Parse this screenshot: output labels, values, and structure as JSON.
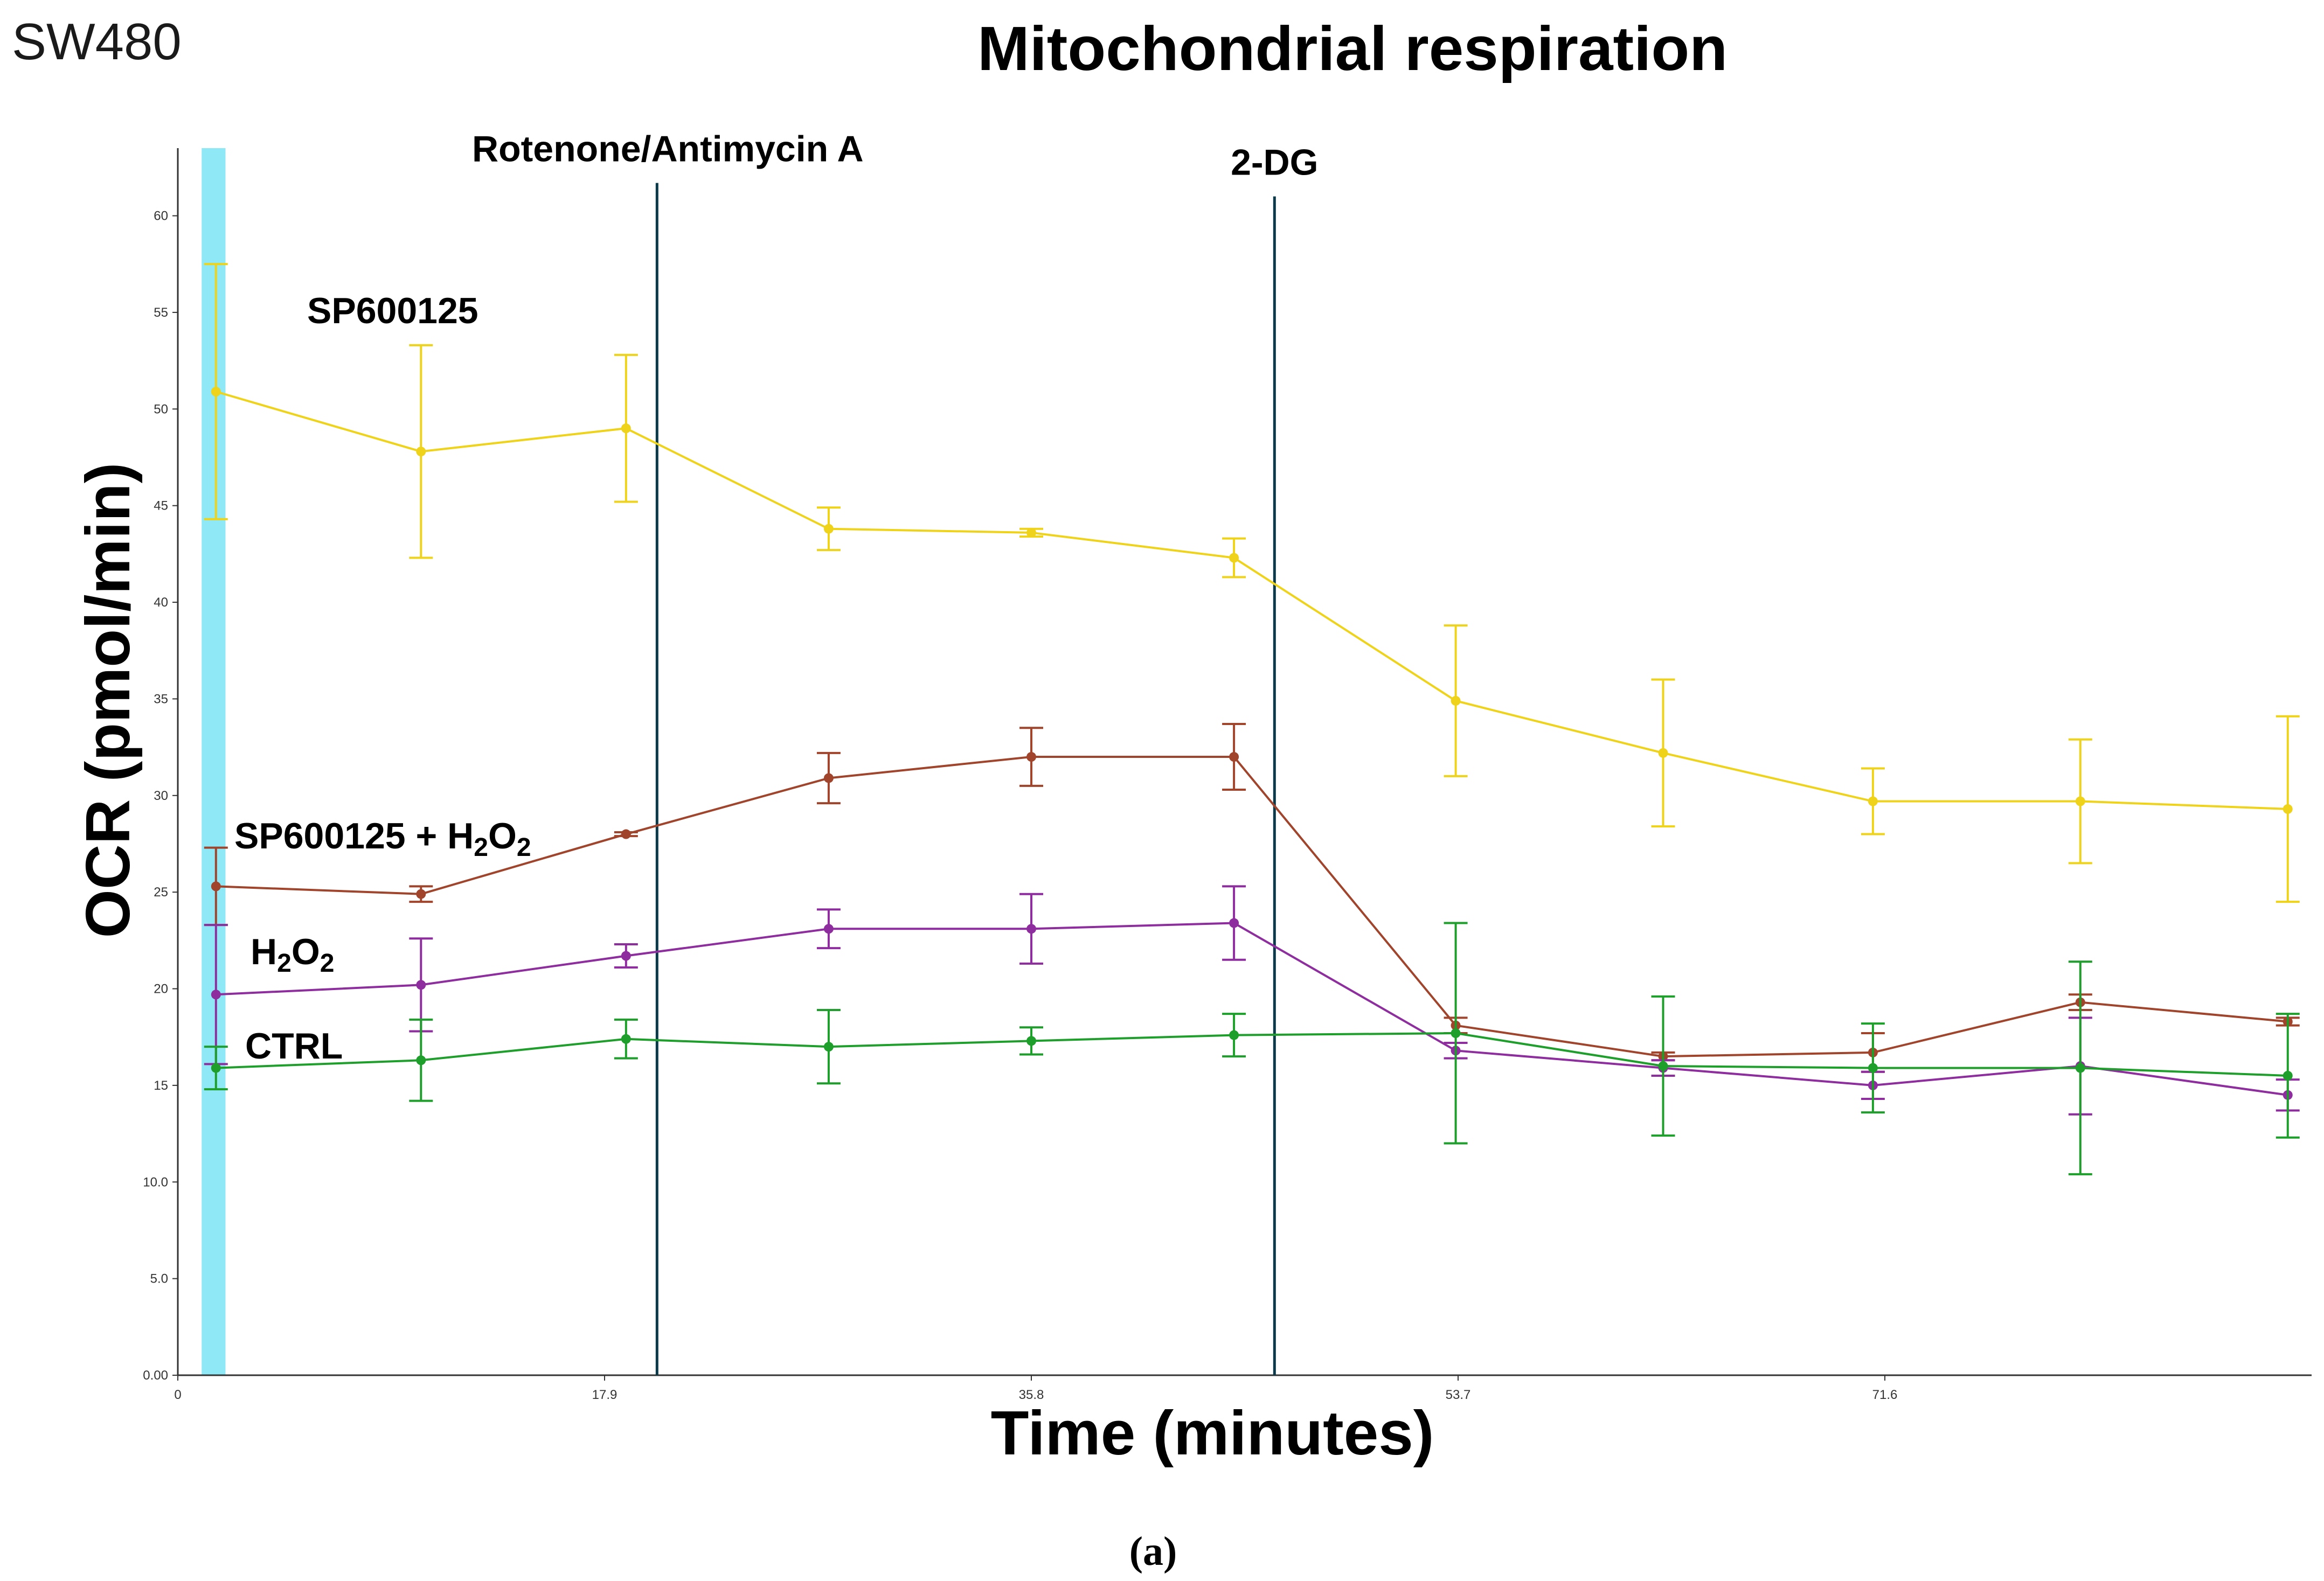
{
  "panel_label": "SW480",
  "caption": "(a)",
  "colors": {
    "injection_band": "#8EE8F5",
    "injection_line": "#0B3A4A",
    "axis": "#333333"
  },
  "chart_data": {
    "type": "line",
    "title": "Mitochondrial respiration",
    "xlabel": "Time (minutes)",
    "ylabel": "OCR (pmol/min)",
    "xlim": [
      0,
      89.5
    ],
    "ylim": [
      0,
      63.5
    ],
    "x_ticks": [
      {
        "value": 0,
        "label": "0"
      },
      {
        "value": 17.9,
        "label": "17.9"
      },
      {
        "value": 35.8,
        "label": "35.8"
      },
      {
        "value": 53.7,
        "label": "53.7"
      },
      {
        "value": 71.6,
        "label": "71.6"
      }
    ],
    "y_ticks": [
      {
        "value": 0,
        "label": "0.00"
      },
      {
        "value": 5,
        "label": "5.0"
      },
      {
        "value": 10,
        "label": "10.0"
      },
      {
        "value": 15,
        "label": "15"
      },
      {
        "value": 20,
        "label": "20"
      },
      {
        "value": 25,
        "label": "25"
      },
      {
        "value": 30,
        "label": "30"
      },
      {
        "value": 35,
        "label": "35"
      },
      {
        "value": 40,
        "label": "40"
      },
      {
        "value": 45,
        "label": "45"
      },
      {
        "value": 50,
        "label": "50"
      },
      {
        "value": 55,
        "label": "55"
      },
      {
        "value": 60,
        "label": "60"
      }
    ],
    "x": [
      1.6,
      10.2,
      18.8,
      27.3,
      35.8,
      44.3,
      53.6,
      62.3,
      71.1,
      79.8,
      88.5
    ],
    "shaded_band": {
      "from": 1.0,
      "to": 2.0
    },
    "injections": [
      {
        "x": 20.1,
        "label": "Rotenone/Antimycin A",
        "top": 61.7
      },
      {
        "x": 46.0,
        "label": "2-DG",
        "top": 61.0
      }
    ],
    "series": [
      {
        "name": "SP600125",
        "color": "#EED31A",
        "values": [
          50.9,
          47.8,
          49.0,
          43.8,
          43.6,
          42.3,
          34.9,
          32.2,
          29.7,
          29.7,
          29.3
        ],
        "errors": [
          6.6,
          5.5,
          3.8,
          1.1,
          0.2,
          1.0,
          3.9,
          3.8,
          1.7,
          3.2,
          4.8
        ]
      },
      {
        "name": "SP600125 + H2O2",
        "color": "#A0442C",
        "values": [
          25.3,
          24.9,
          28.0,
          30.9,
          32.0,
          32.0,
          18.1,
          16.5,
          16.7,
          19.3,
          18.3
        ],
        "errors": [
          2.0,
          0.4,
          0.1,
          1.3,
          1.5,
          1.7,
          0.4,
          0.2,
          1.0,
          0.4,
          0.2
        ]
      },
      {
        "name": "H2O2",
        "color": "#8E2E9E",
        "values": [
          19.7,
          20.2,
          21.7,
          23.1,
          23.1,
          23.4,
          16.8,
          15.9,
          15.0,
          16.0,
          14.5
        ],
        "errors": [
          3.6,
          2.4,
          0.6,
          1.0,
          1.8,
          1.9,
          0.4,
          0.4,
          0.7,
          2.5,
          0.8
        ]
      },
      {
        "name": "CTRL",
        "color": "#1E9E2A",
        "values": [
          15.9,
          16.3,
          17.4,
          17.0,
          17.3,
          17.6,
          17.7,
          16.0,
          15.9,
          15.9,
          15.5
        ],
        "errors": [
          1.1,
          2.1,
          1.0,
          1.9,
          0.7,
          1.1,
          5.7,
          3.6,
          2.3,
          5.5,
          3.2
        ]
      }
    ],
    "series_labels": [
      {
        "series": "SP600125",
        "parts": [
          {
            "t": "SP600125",
            "sub": false
          }
        ]
      },
      {
        "series": "SP600125 + H2O2",
        "parts": [
          {
            "t": "SP600125 + H",
            "sub": false
          },
          {
            "t": "2",
            "sub": true
          },
          {
            "t": "O",
            "sub": false
          },
          {
            "t": "2",
            "sub": true
          }
        ]
      },
      {
        "series": "H2O2",
        "parts": [
          {
            "t": "H",
            "sub": false
          },
          {
            "t": "2",
            "sub": true
          },
          {
            "t": "O",
            "sub": false
          },
          {
            "t": "2",
            "sub": true
          }
        ]
      },
      {
        "series": "CTRL",
        "parts": [
          {
            "t": "CTRL",
            "sub": false
          }
        ]
      }
    ]
  }
}
